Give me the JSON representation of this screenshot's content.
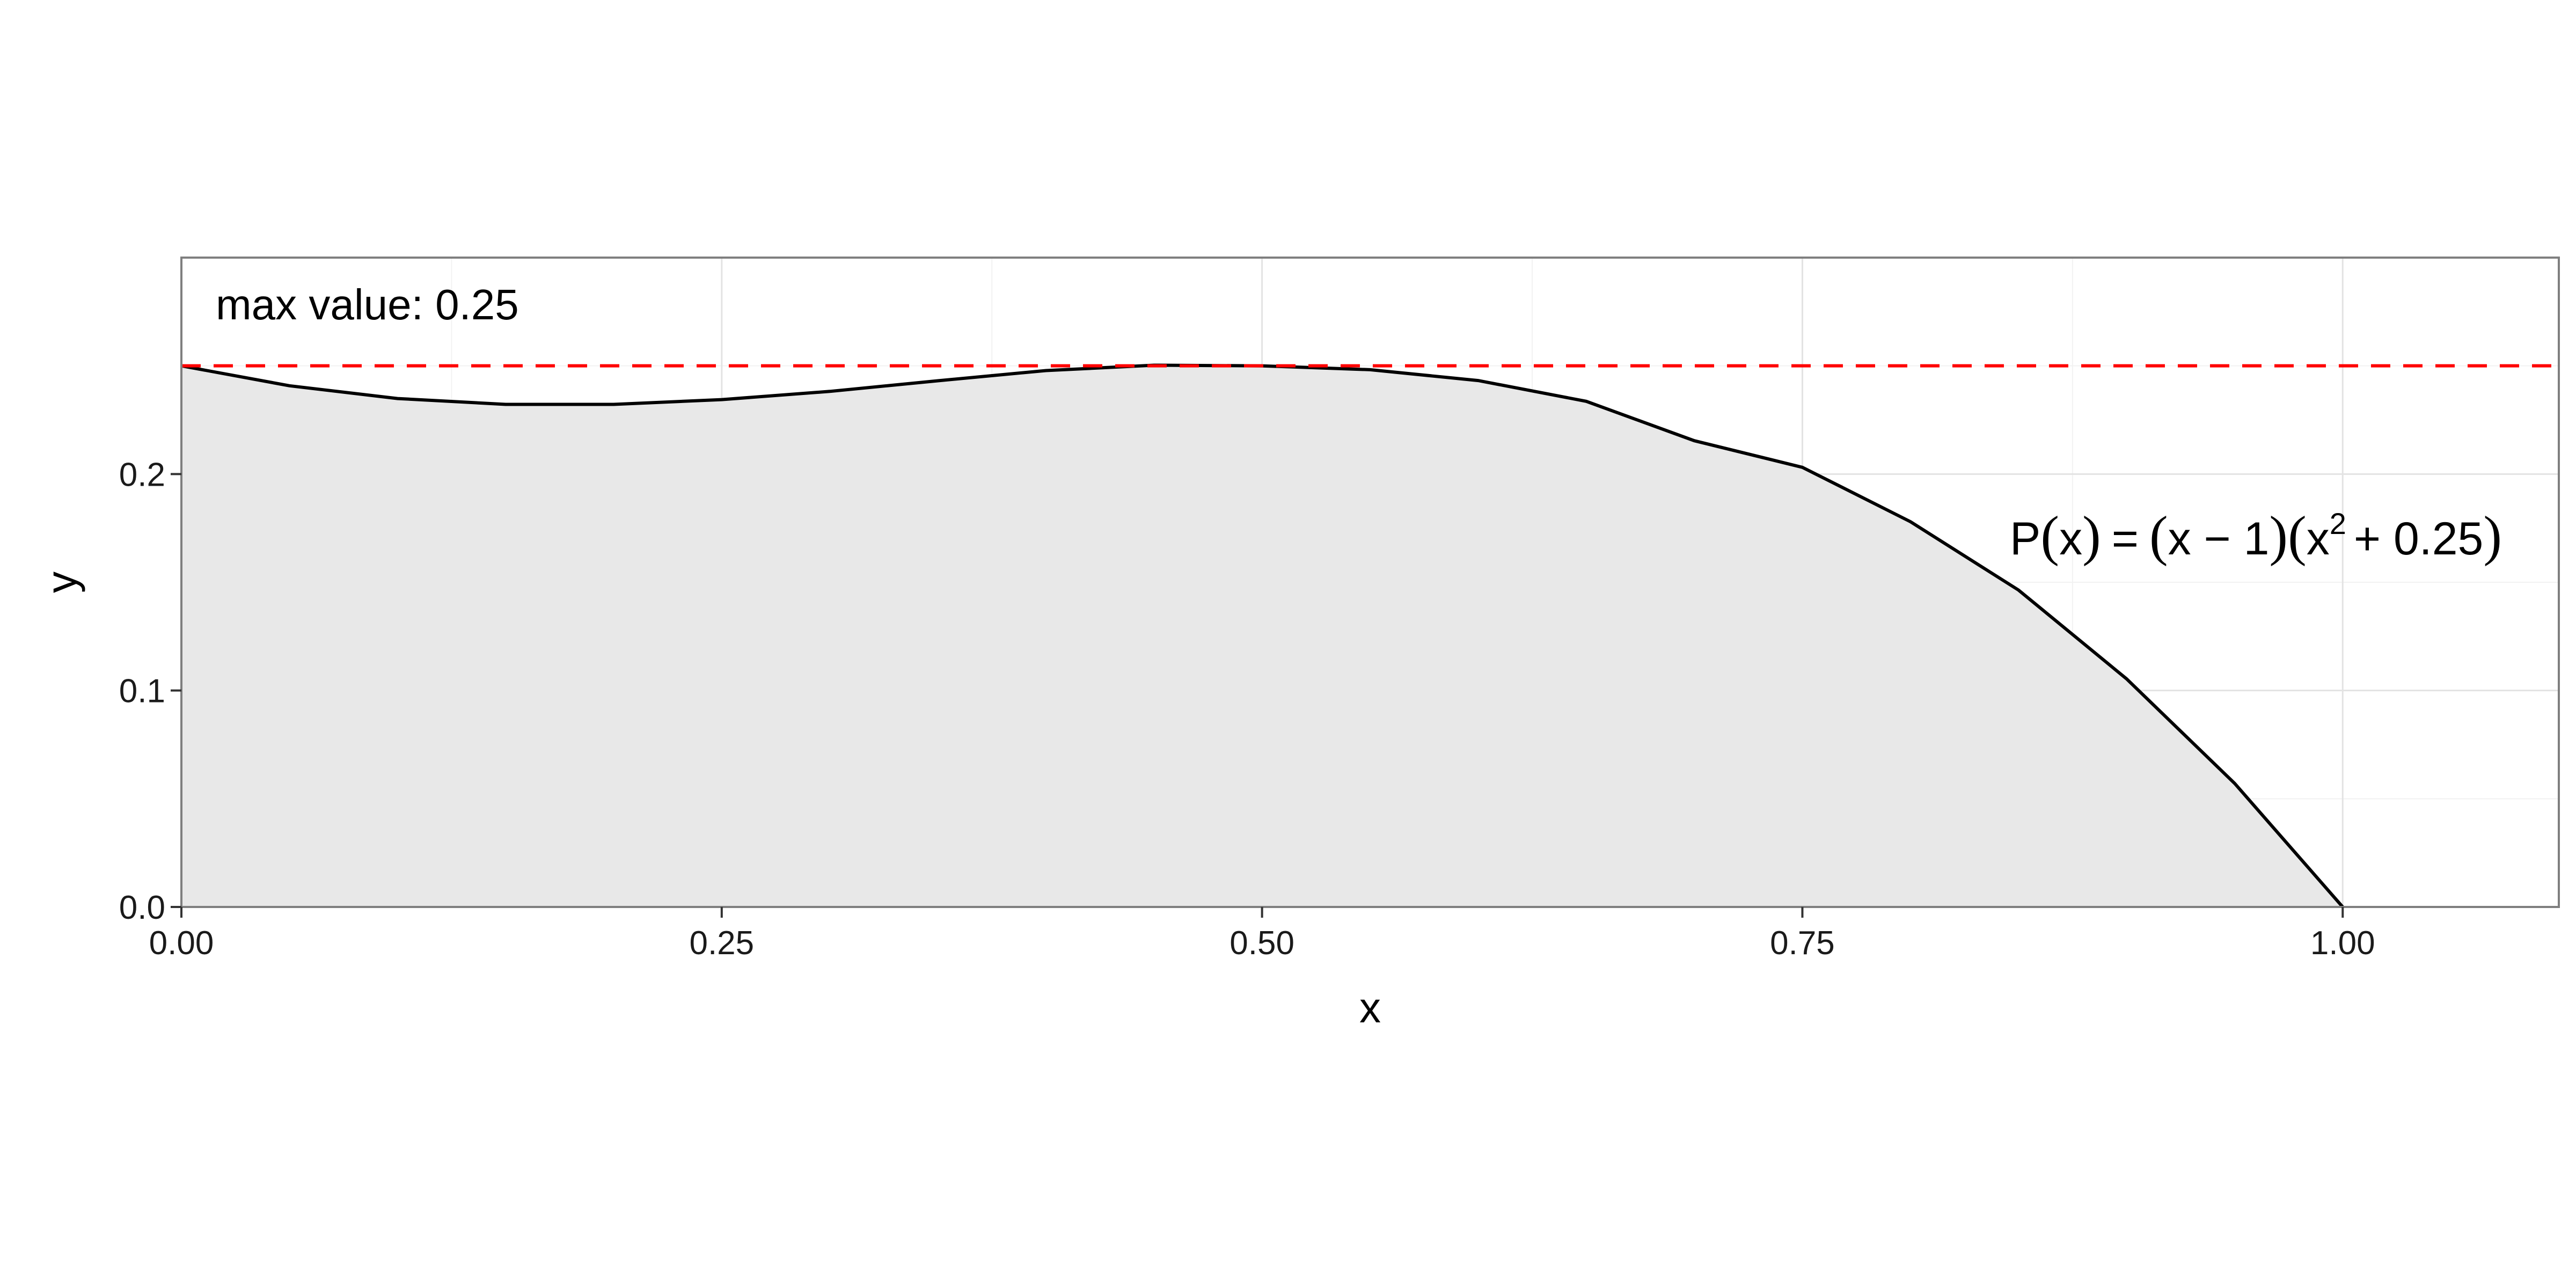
{
  "chart_data": {
    "type": "area",
    "xlabel": "x",
    "ylabel": "y",
    "xlim": [
      0,
      1.1
    ],
    "ylim": [
      0,
      0.3
    ],
    "x_ticks": [
      0,
      0.25,
      0.5,
      0.75,
      1.0
    ],
    "x_tick_labels": [
      "0.00",
      "0.25",
      "0.50",
      "0.75",
      "1.00"
    ],
    "y_ticks": [
      0,
      0.1,
      0.2
    ],
    "y_tick_labels": [
      "0.0",
      "0.1",
      "0.2"
    ],
    "grid": true,
    "legend": "none",
    "series": [
      {
        "x": [
          0,
          0.05,
          0.1,
          0.15,
          0.2,
          0.25,
          0.3,
          0.35,
          0.4,
          0.45,
          0.5,
          0.55,
          0.6,
          0.65,
          0.7,
          0.75,
          0.8,
          0.85,
          0.9,
          0.95,
          1.0
        ],
        "values": [
          0.25,
          0.2408,
          0.2349,
          0.2322,
          0.2322,
          0.2344,
          0.2382,
          0.2431,
          0.2478,
          0.2503,
          0.25,
          0.2482,
          0.2432,
          0.2336,
          0.2154,
          0.2031,
          0.178,
          0.1464,
          0.1054,
          0.0571,
          0
        ],
        "fill": "#e8e8e8",
        "line": "#000000"
      }
    ],
    "hline": {
      "y": 0.25,
      "color": "#ff0000",
      "style": "dashed"
    },
    "annotations": {
      "max_label": "max value: 0.25",
      "formula": {
        "lhs": "P",
        "arg": "x",
        "eq": "=",
        "factor1": "x − 1",
        "factor2_base": "x",
        "exponent": "2",
        "factor2_tail": "+ 0.25"
      }
    }
  }
}
